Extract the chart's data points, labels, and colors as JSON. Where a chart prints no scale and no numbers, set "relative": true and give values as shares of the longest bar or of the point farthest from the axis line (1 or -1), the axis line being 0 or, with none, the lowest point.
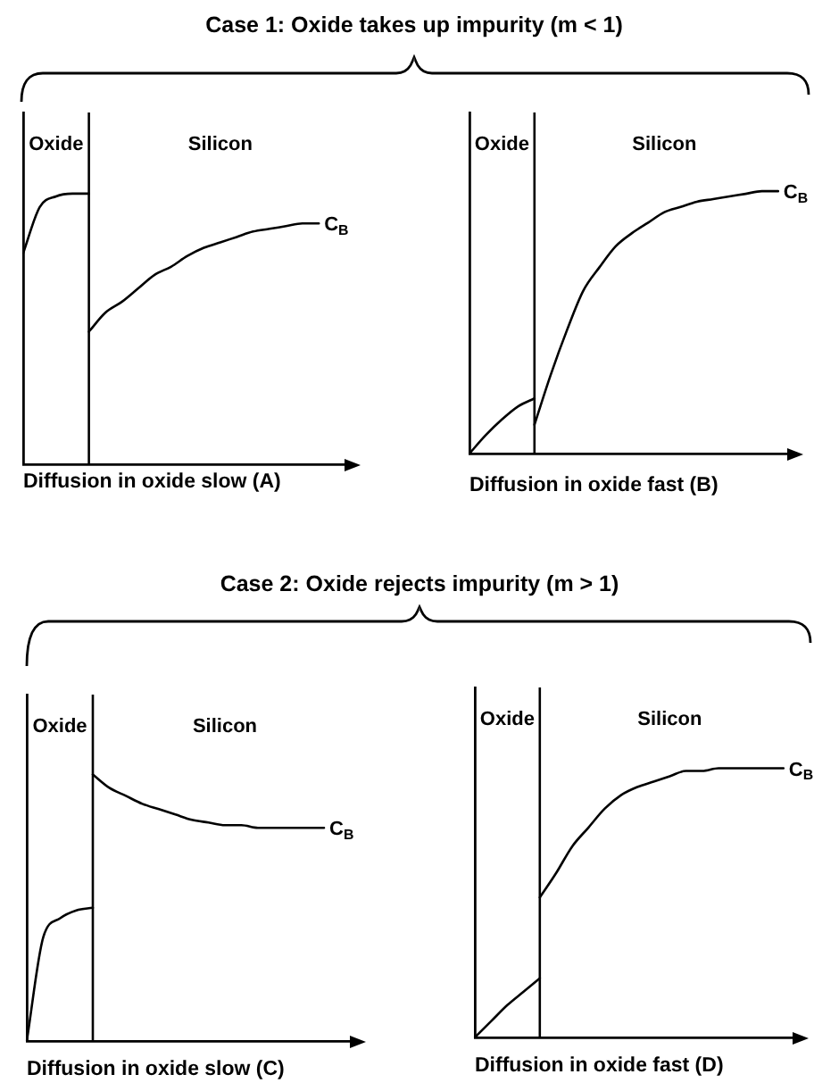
{
  "chart_data": [
    {
      "type": "line",
      "title": "Case 1: Oxide takes up impurity (m < 1)",
      "xlabel": "Diffusion in oxide slow (A)",
      "relative": true,
      "tick_labels": false,
      "marker": "none",
      "categories": [
        null,
        null,
        null,
        null,
        null,
        null,
        null,
        null,
        null,
        null,
        null,
        null,
        null,
        null,
        null,
        null,
        null,
        null,
        null,
        null,
        null
      ],
      "series": [
        {
          "color": "#000000",
          "values": [
            0.78,
            0.95,
            0.99,
            1.0,
            1.0,
            null,
            null,
            null,
            null,
            null,
            null,
            null,
            null,
            null,
            null,
            null,
            null,
            null,
            null,
            null,
            null
          ]
        },
        {
          "color": "#000000",
          "values": [
            null,
            null,
            null,
            null,
            0.49,
            0.56,
            0.6,
            0.65,
            0.7,
            0.73,
            0.77,
            0.8,
            0.82,
            0.84,
            0.86,
            0.87,
            0.88,
            0.89,
            0.89,
            null,
            null
          ]
        }
      ],
      "annotations": [
        "Oxide",
        "Silicon",
        "C$_{B}$"
      ]
    },
    {
      "type": "line",
      "xlabel": "Diffusion in oxide fast (B)",
      "relative": true,
      "tick_labels": false,
      "marker": "none",
      "categories": [
        null,
        null,
        null,
        null,
        null,
        null,
        null,
        null,
        null,
        null,
        null,
        null,
        null,
        null,
        null,
        null,
        null,
        null,
        null,
        null,
        null
      ],
      "series": [
        {
          "color": "#000000",
          "values": [
            0,
            0.07,
            0.13,
            0.18,
            0.21,
            null,
            null,
            null,
            null,
            null,
            null,
            null,
            null,
            null,
            null,
            null,
            null,
            null,
            null,
            null,
            null
          ]
        },
        {
          "color": "#000000",
          "values": [
            null,
            null,
            null,
            null,
            0.11,
            0.3,
            0.47,
            0.62,
            0.71,
            0.79,
            0.84,
            0.88,
            0.92,
            0.94,
            0.96,
            0.97,
            0.98,
            0.99,
            1.0,
            1.0,
            null
          ]
        }
      ],
      "annotations": [
        "Oxide",
        "Silicon",
        "C$_{B}$"
      ]
    },
    {
      "type": "line",
      "title": "Case 2: Oxide rejects impurity (m > 1)",
      "xlabel": "Diffusion in oxide slow (C)",
      "relative": true,
      "tick_labels": false,
      "marker": "none",
      "categories": [
        null,
        null,
        null,
        null,
        null,
        null,
        null,
        null,
        null,
        null,
        null,
        null,
        null,
        null,
        null,
        null,
        null,
        null,
        null,
        null,
        null
      ],
      "series": [
        {
          "color": "#000000",
          "values": [
            0,
            0.39,
            0.46,
            0.49,
            0.5,
            null,
            null,
            null,
            null,
            null,
            null,
            null,
            null,
            null,
            null,
            null,
            null,
            null,
            null,
            null,
            null
          ]
        },
        {
          "color": "#000000",
          "values": [
            null,
            null,
            null,
            null,
            1.0,
            0.95,
            0.92,
            0.89,
            0.87,
            0.85,
            0.83,
            0.82,
            0.81,
            0.81,
            0.8,
            0.8,
            0.8,
            0.8,
            0.8,
            null,
            null
          ]
        }
      ],
      "annotations": [
        "Oxide",
        "Silicon",
        "C$_{B}$"
      ]
    },
    {
      "type": "line",
      "xlabel": "Diffusion in oxide fast (D)",
      "relative": true,
      "tick_labels": false,
      "marker": "none",
      "categories": [
        null,
        null,
        null,
        null,
        null,
        null,
        null,
        null,
        null,
        null,
        null,
        null,
        null,
        null,
        null,
        null,
        null,
        null,
        null,
        null,
        null
      ],
      "series": [
        {
          "color": "#000000",
          "values": [
            0,
            0.06,
            0.12,
            0.17,
            0.22,
            null,
            null,
            null,
            null,
            null,
            null,
            null,
            null,
            null,
            null,
            null,
            null,
            null,
            null,
            null,
            null
          ]
        },
        {
          "color": "#000000",
          "values": [
            null,
            null,
            null,
            null,
            0.52,
            0.61,
            0.71,
            0.78,
            0.85,
            0.9,
            0.93,
            0.95,
            0.97,
            0.99,
            0.99,
            1.0,
            1.0,
            1.0,
            1.0,
            1.0,
            null
          ]
        }
      ],
      "annotations": [
        "Oxide",
        "Silicon",
        "C$_{B}$"
      ]
    }
  ]
}
